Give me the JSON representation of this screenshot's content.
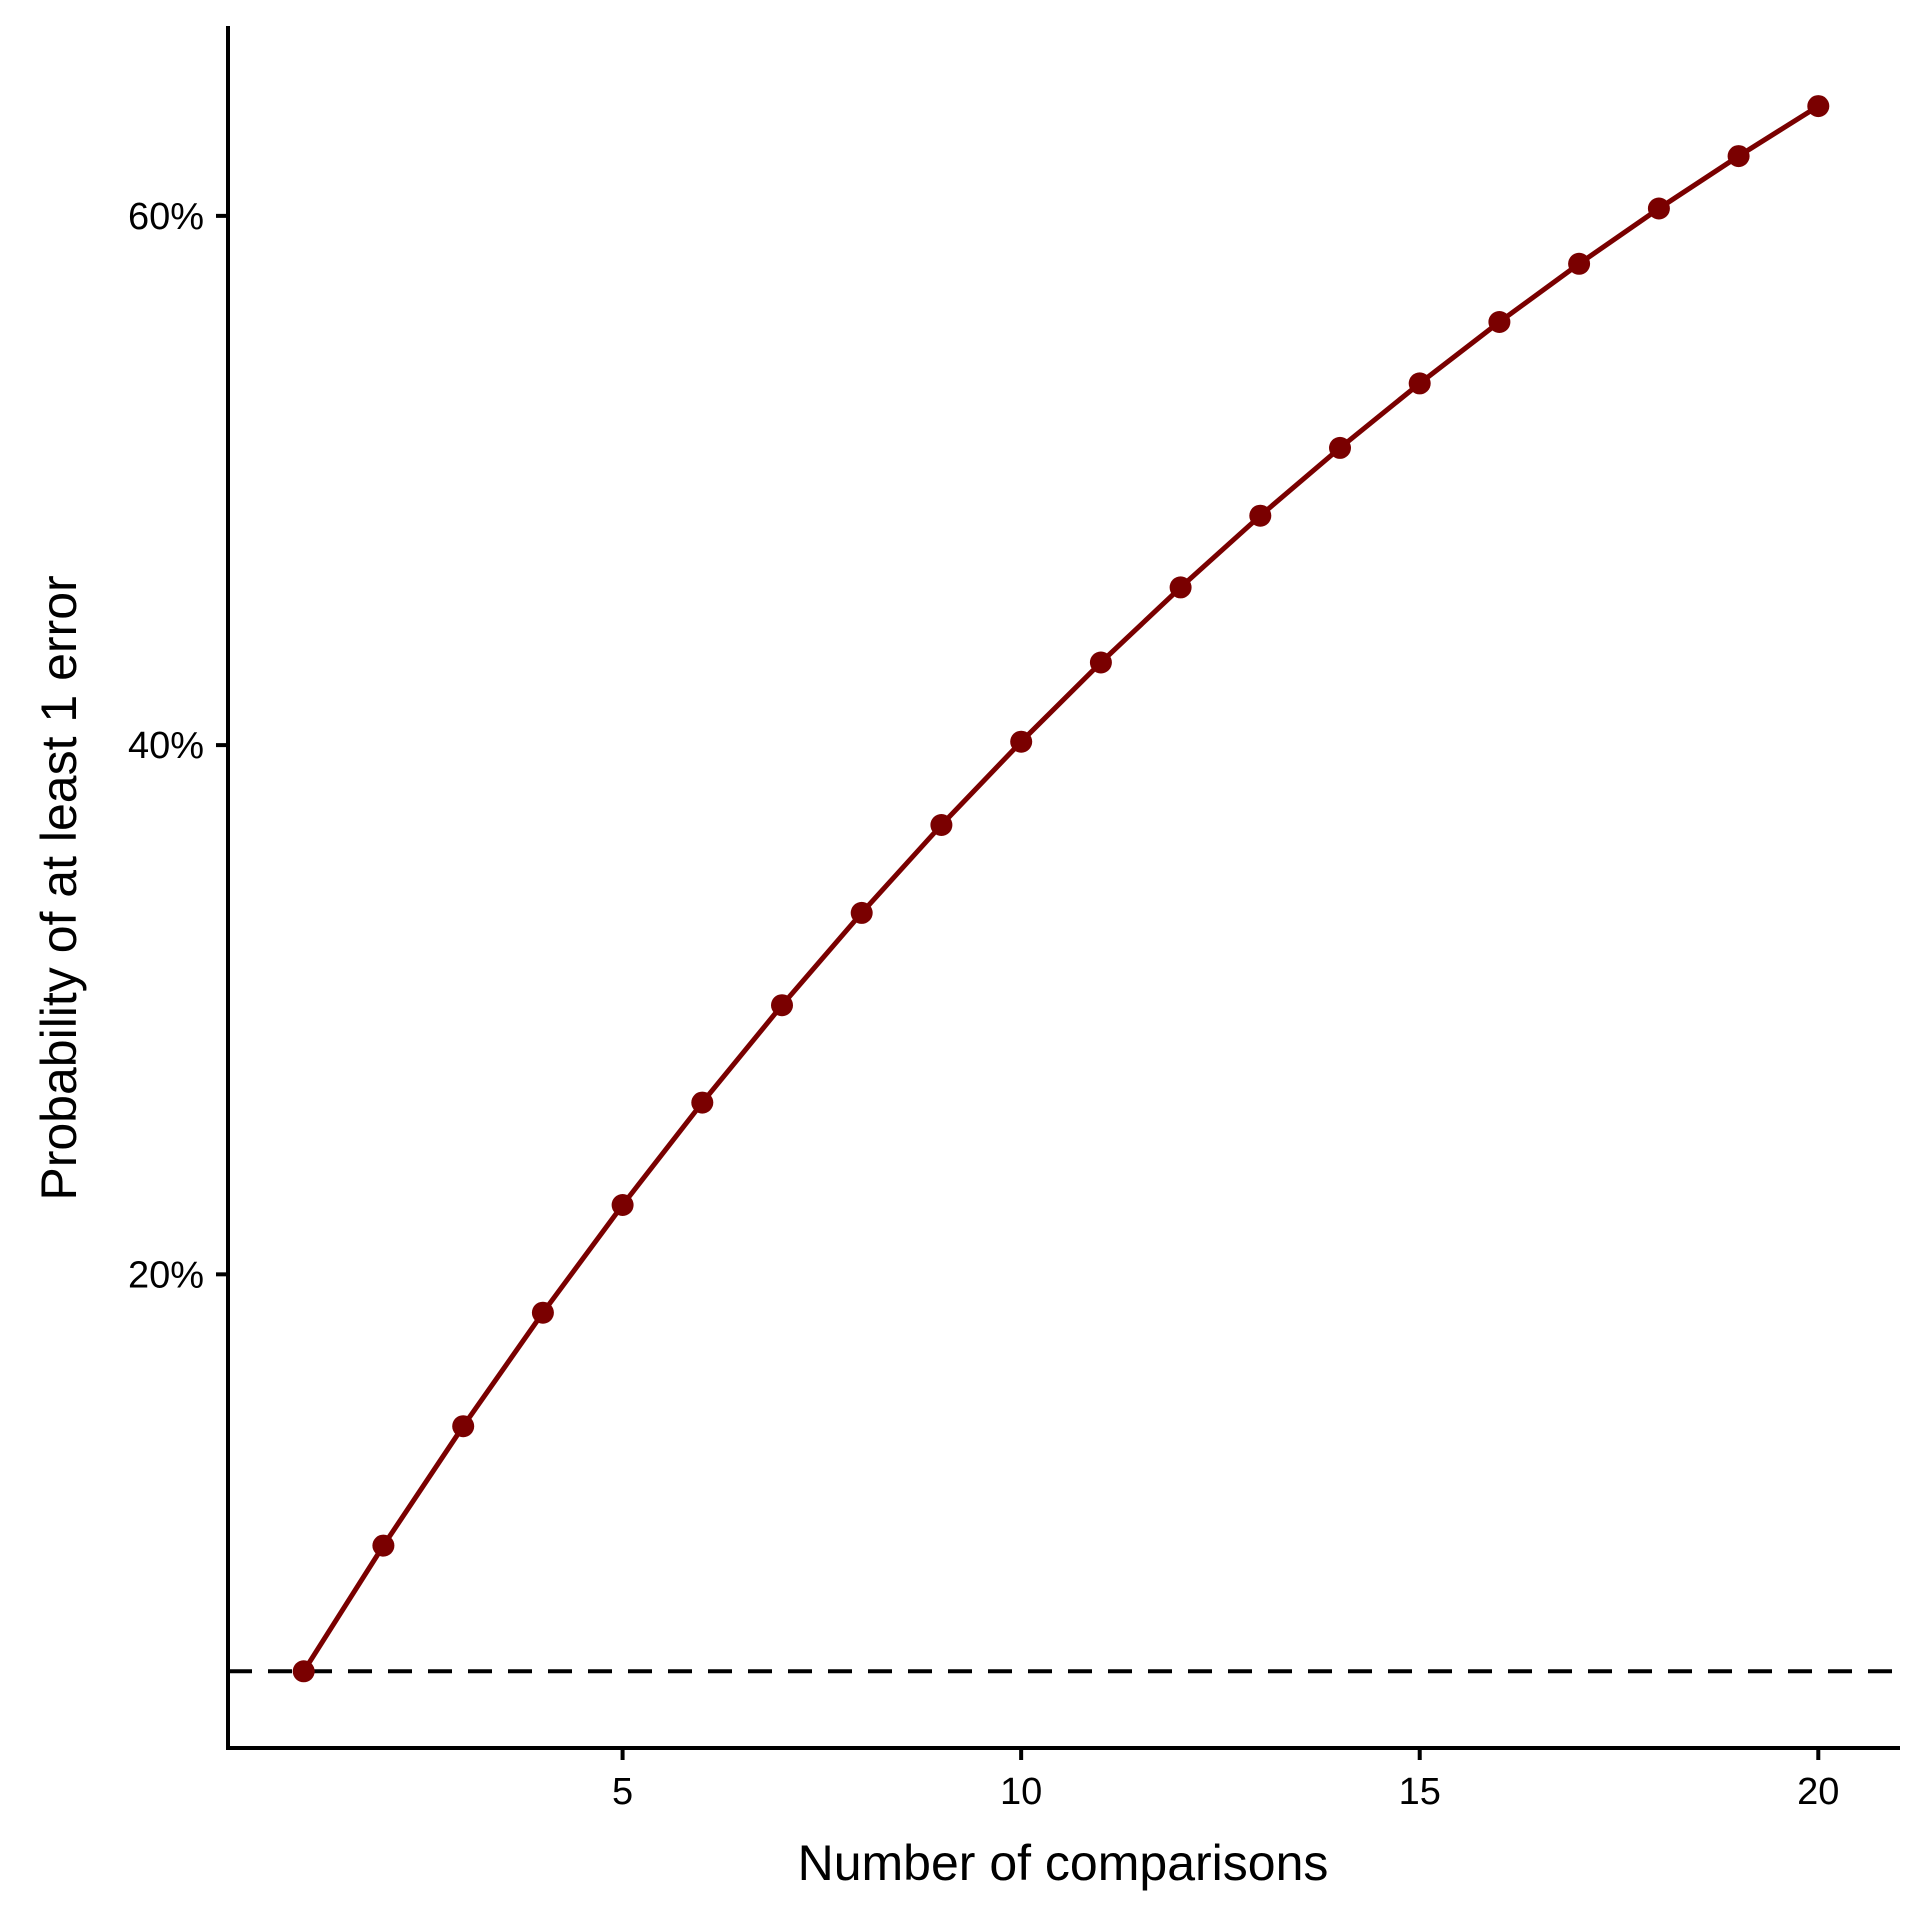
{
  "chart_data": {
    "type": "line",
    "title": "",
    "xlabel": "Number of comparisons",
    "ylabel": "Probability of at least 1 error",
    "x": [
      1,
      2,
      3,
      4,
      5,
      6,
      7,
      8,
      9,
      10,
      11,
      12,
      13,
      14,
      15,
      16,
      17,
      18,
      19,
      20
    ],
    "series": [
      {
        "name": "",
        "color": "#7a0000",
        "values": [
          0.05,
          0.0975,
          0.1426,
          0.1855,
          0.2262,
          0.2649,
          0.3017,
          0.3366,
          0.3698,
          0.4013,
          0.4312,
          0.4596,
          0.4867,
          0.5123,
          0.5367,
          0.5599,
          0.5819,
          0.6028,
          0.6226,
          0.6415
        ]
      }
    ],
    "reference_line": {
      "y": 0.05,
      "style": "dashed",
      "color": "#000000"
    },
    "xlim": [
      0.05,
      21.0
    ],
    "ylim": [
      0.021,
      0.671
    ],
    "x_ticks": [
      5,
      10,
      15,
      20
    ],
    "x_tick_labels": [
      "5",
      "10",
      "15",
      "20"
    ],
    "y_ticks": [
      0.2,
      0.4,
      0.6
    ],
    "y_tick_labels": [
      "20%",
      "40%",
      "60%"
    ],
    "grid": false,
    "legend": "none"
  }
}
